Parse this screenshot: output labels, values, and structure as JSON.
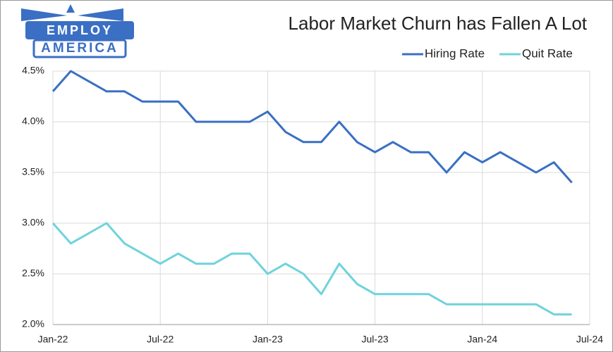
{
  "logo": {
    "top": "EMPLOY",
    "bottom": "AMERICA"
  },
  "chart_data": {
    "type": "line",
    "title": "Labor Market Churn has Fallen A Lot",
    "categories": [
      "Jan-22",
      null,
      null,
      null,
      null,
      null,
      "Jul-22",
      null,
      null,
      null,
      null,
      null,
      "Jan-23",
      null,
      null,
      null,
      null,
      null,
      "Jul-23",
      null,
      null,
      null,
      null,
      null,
      "Jan-24",
      null,
      null,
      null,
      null,
      null,
      "Jul-24"
    ],
    "series": [
      {
        "name": "Hiring Rate",
        "color": "#3a6fc4",
        "values": [
          4.3,
          4.5,
          4.4,
          4.3,
          4.3,
          4.2,
          4.2,
          4.2,
          4.0,
          4.0,
          4.0,
          4.0,
          4.1,
          3.9,
          3.8,
          3.8,
          4.0,
          3.8,
          3.7,
          3.8,
          3.7,
          3.7,
          3.5,
          3.7,
          3.6,
          3.7,
          3.6,
          3.5,
          3.6,
          3.4,
          null
        ]
      },
      {
        "name": "Quit Rate",
        "color": "#6fd3dc",
        "values": [
          3.0,
          2.8,
          2.9,
          3.0,
          2.8,
          2.7,
          2.6,
          2.7,
          2.6,
          2.6,
          2.7,
          2.7,
          2.5,
          2.6,
          2.5,
          2.3,
          2.6,
          2.4,
          2.3,
          2.3,
          2.3,
          2.3,
          2.2,
          2.2,
          2.2,
          2.2,
          2.2,
          2.2,
          2.1,
          2.1,
          null
        ]
      }
    ],
    "ylim": [
      2.0,
      4.5
    ],
    "yticks": [
      {
        "value": 2.0,
        "label": "2.0%"
      },
      {
        "value": 2.5,
        "label": "2.5%"
      },
      {
        "value": 3.0,
        "label": "3.0%"
      },
      {
        "value": 3.5,
        "label": "3.5%"
      },
      {
        "value": 4.0,
        "label": "4.0%"
      },
      {
        "value": 4.5,
        "label": "4.5%"
      }
    ],
    "grid": true,
    "legend": "top-right"
  }
}
